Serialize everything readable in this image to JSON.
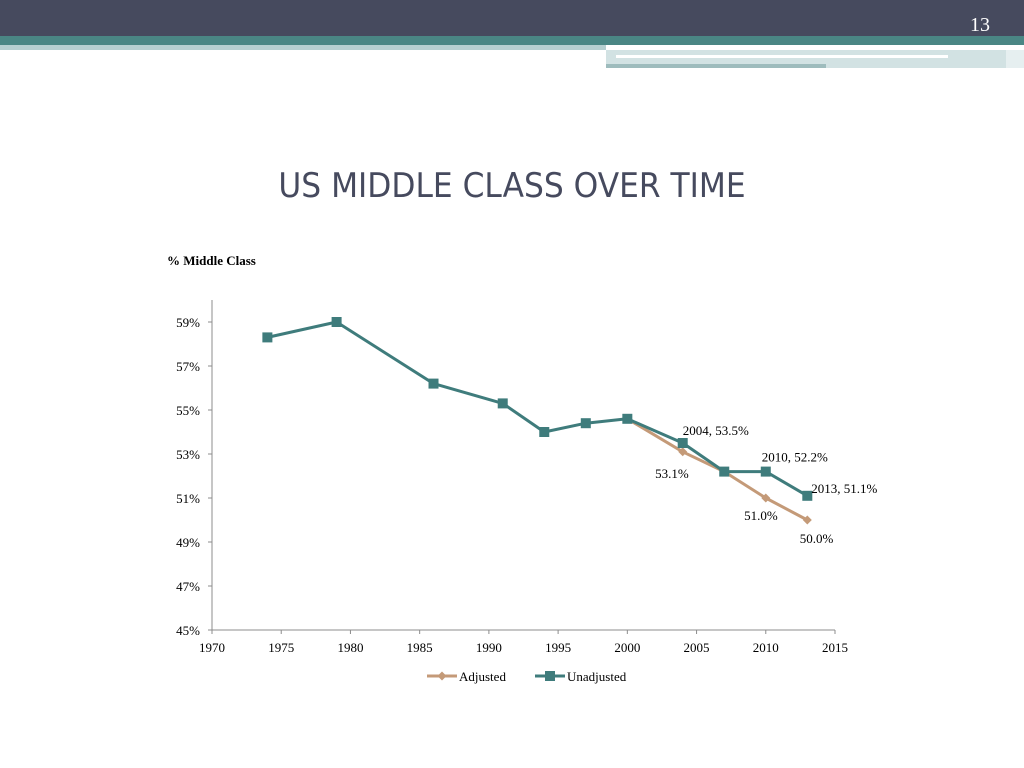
{
  "slide": {
    "number": "13",
    "title": "US MIDDLE CLASS OVER TIME"
  },
  "colors": {
    "header_dark": "#464a5e",
    "header_teal": "#4a8684",
    "adjusted": "#c49a78",
    "unadjusted": "#3f7c7c"
  },
  "chart_data": {
    "type": "line",
    "ylabel_title": "% Middle Class",
    "xlim": [
      1970,
      2015
    ],
    "ylim": [
      45,
      60
    ],
    "x_ticks": [
      1970,
      1975,
      1980,
      1985,
      1990,
      1995,
      2000,
      2005,
      2010,
      2015
    ],
    "y_ticks": [
      45,
      47,
      49,
      51,
      53,
      55,
      57,
      59
    ],
    "y_tick_labels": [
      "45%",
      "47%",
      "49%",
      "51%",
      "53%",
      "55%",
      "57%",
      "59%"
    ],
    "legend_position": "bottom",
    "series": [
      {
        "name": "Adjusted",
        "color": "#c49a78",
        "marker": "diamond",
        "points": [
          [
            2000,
            54.6
          ],
          [
            2004,
            53.1
          ],
          [
            2007,
            52.2
          ],
          [
            2010,
            51.0
          ],
          [
            2013,
            50.0
          ]
        ]
      },
      {
        "name": "Unadjusted",
        "color": "#3f7c7c",
        "marker": "square",
        "points": [
          [
            1974,
            58.3
          ],
          [
            1979,
            59.0
          ],
          [
            1986,
            56.2
          ],
          [
            1991,
            55.3
          ],
          [
            1994,
            54.0
          ],
          [
            1997,
            54.4
          ],
          [
            2000,
            54.6
          ],
          [
            2004,
            53.5
          ],
          [
            2007,
            52.2
          ],
          [
            2010,
            52.2
          ],
          [
            2013,
            51.1
          ]
        ]
      }
    ],
    "annotations": [
      {
        "text": "2004, 53.5%",
        "x": 2004,
        "y": 53.5
      },
      {
        "text": "53.1%",
        "x": 2004,
        "y": 53.1
      },
      {
        "text": "2010, 52.2%",
        "x": 2010,
        "y": 52.2
      },
      {
        "text": "2013, 51.1%",
        "x": 2013,
        "y": 51.1
      },
      {
        "text": "51.0%",
        "x": 2010,
        "y": 51.0
      },
      {
        "text": "50.0%",
        "x": 2013,
        "y": 50.0
      }
    ]
  }
}
